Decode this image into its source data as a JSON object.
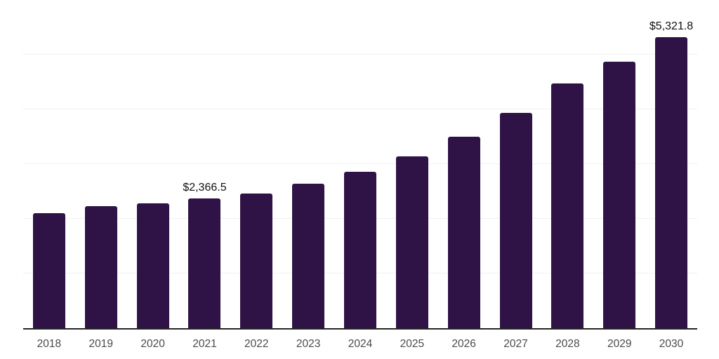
{
  "chart_data": {
    "type": "bar",
    "title": "",
    "xlabel": "",
    "ylabel": "",
    "categories": [
      "2018",
      "2019",
      "2020",
      "2021",
      "2022",
      "2023",
      "2024",
      "2025",
      "2026",
      "2027",
      "2028",
      "2029",
      "2030"
    ],
    "values": [
      2105,
      2235,
      2285,
      2366.5,
      2465,
      2645,
      2860,
      3140,
      3505,
      3930,
      4475,
      4870,
      5321.8
    ],
    "data_labels": [
      {
        "category": "2021",
        "text": "$2,366.5"
      },
      {
        "category": "2030",
        "text": "$5,321.8"
      }
    ],
    "ylim": [
      0,
      6000
    ],
    "grid_interval": 1000,
    "grid": "horizontal",
    "legend": "none",
    "colors": {
      "bar": "#301346",
      "axis_line": "#262626",
      "gridline": "#f0f0f0",
      "tick_label": "#4a4a4a",
      "value_label": "#111111",
      "background": "#ffffff"
    }
  }
}
